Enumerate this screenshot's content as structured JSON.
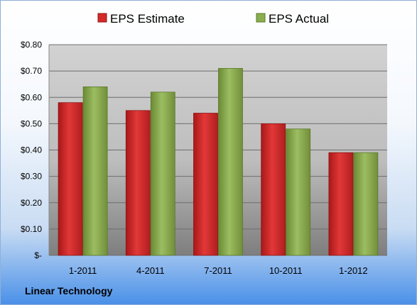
{
  "chart_data": {
    "type": "bar",
    "categories": [
      "1-2011",
      "4-2011",
      "7-2011",
      "10-2011",
      "1-2012"
    ],
    "series": [
      {
        "name": "EPS Estimate",
        "color": "#d42a2a",
        "values": [
          0.58,
          0.55,
          0.54,
          0.5,
          0.39
        ]
      },
      {
        "name": "EPS Actual",
        "color": "#8aad4e",
        "values": [
          0.64,
          0.62,
          0.71,
          0.48,
          0.39
        ]
      }
    ],
    "yticks": [
      {
        "value": 0,
        "label": "$-"
      },
      {
        "value": 0.1,
        "label": "$0.10"
      },
      {
        "value": 0.2,
        "label": "$0.20"
      },
      {
        "value": 0.3,
        "label": "$0.30"
      },
      {
        "value": 0.4,
        "label": "$0.40"
      },
      {
        "value": 0.5,
        "label": "$0.50"
      },
      {
        "value": 0.6,
        "label": "$0.60"
      },
      {
        "value": 0.7,
        "label": "$0.70"
      },
      {
        "value": 0.8,
        "label": "$0.80"
      }
    ],
    "ylim": [
      0,
      0.8
    ],
    "grid": true,
    "legend": "top-center"
  },
  "footer": {
    "label": "Linear Technology"
  }
}
